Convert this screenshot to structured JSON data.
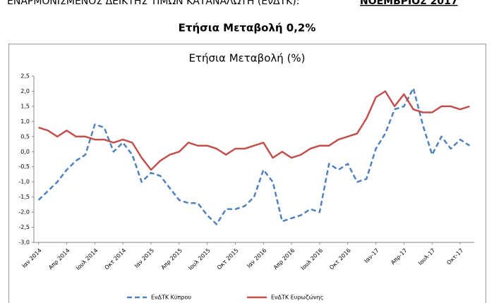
{
  "header": {
    "title": "ΕΝΑΡΜΟΝΙΣΜΕΝΟΣ ΔΕΙΚΤΗΣ ΤΙΜΩΝ ΚΑΤΑΝΑΛΩΤΗ (ΕνΔΤΚ):",
    "month": "ΝΟΕΜΒΡΙΟΣ 2017"
  },
  "subtitle": "Ετήσια Μεταβολή 0,2%",
  "chart_data": {
    "type": "line",
    "title": "Ετήσια Μεταβολή (%)",
    "categories": [
      "Ιαν 2014",
      null,
      null,
      "Απρ 2014",
      null,
      null,
      "Ιουλ 2014",
      null,
      null,
      "Οκτ 2014",
      null,
      null,
      "Ιαν 2015",
      null,
      null,
      "Απρ 2015",
      null,
      null,
      "Ιουλ 2015",
      null,
      null,
      "Οκτ 2015",
      null,
      null,
      "Ιαν 2016",
      null,
      null,
      "Απρ 2016",
      null,
      null,
      "Ιουλ 2016",
      null,
      null,
      "Οκτ 2016",
      null,
      null,
      "Ιαν-17",
      null,
      null,
      "Απρ-17",
      null,
      null,
      "Ιουλ-17",
      null,
      null,
      "Οκτ-17",
      null
    ],
    "series": [
      {
        "name": "ΕνΔΤΚ Κύπρου",
        "color": "#4f81bd",
        "dashed": true,
        "values": [
          -1.6,
          -1.3,
          -1.0,
          -0.6,
          -0.3,
          -0.1,
          0.9,
          0.8,
          0.0,
          0.3,
          -0.1,
          -1.0,
          -0.7,
          -0.8,
          -1.2,
          -1.6,
          -1.7,
          -1.7,
          -2.1,
          -2.4,
          -1.9,
          -1.9,
          -1.8,
          -1.5,
          -0.6,
          -1.0,
          -2.3,
          -2.2,
          -2.1,
          -1.9,
          -2.0,
          -0.4,
          -0.6,
          -0.4,
          -1.0,
          -0.9,
          0.1,
          0.6,
          1.4,
          1.5,
          2.1,
          0.9,
          -0.1,
          0.5,
          0.1,
          0.4,
          0.2
        ]
      },
      {
        "name": "ΕνΔΤΚ Ευρωζώνης",
        "color": "#c0504d",
        "dashed": false,
        "values": [
          0.8,
          0.7,
          0.5,
          0.7,
          0.5,
          0.5,
          0.4,
          0.4,
          0.3,
          0.4,
          0.3,
          -0.2,
          -0.6,
          -0.3,
          -0.1,
          0.0,
          0.3,
          0.2,
          0.2,
          0.1,
          -0.1,
          0.1,
          0.1,
          0.2,
          0.3,
          -0.2,
          0.0,
          -0.2,
          -0.1,
          0.1,
          0.2,
          0.2,
          0.4,
          0.5,
          0.6,
          1.1,
          1.8,
          2.0,
          1.5,
          1.9,
          1.4,
          1.3,
          1.3,
          1.5,
          1.5,
          1.4,
          1.5
        ]
      }
    ],
    "ylim": [
      -3.0,
      2.5
    ],
    "yticks": [
      {
        "value": 2.5,
        "label": "2,5"
      },
      {
        "value": 2.0,
        "label": "2,0"
      },
      {
        "value": 1.5,
        "label": "1,5"
      },
      {
        "value": 1.0,
        "label": "1,0"
      },
      {
        "value": 0.5,
        "label": "0,5"
      },
      {
        "value": 0.0,
        "label": "0,0"
      },
      {
        "value": -0.5,
        "label": "-0,5"
      },
      {
        "value": -1.0,
        "label": "-1,0"
      },
      {
        "value": -1.5,
        "label": "-1,5"
      },
      {
        "value": -2.0,
        "label": "-2,0"
      },
      {
        "value": -2.5,
        "label": "-2,5"
      },
      {
        "value": -3.0,
        "label": "-3,0"
      }
    ],
    "grid": false,
    "legend": "bottom"
  }
}
